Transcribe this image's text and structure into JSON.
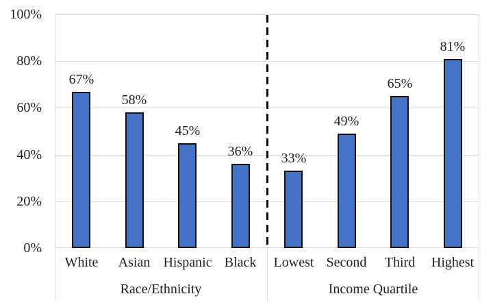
{
  "chart_data": {
    "type": "bar",
    "title": "",
    "xlabel": "",
    "ylabel": "",
    "ylim": [
      0,
      100
    ],
    "grid": "on",
    "legend": "none",
    "yticks": [
      {
        "value": 0,
        "label": "0%"
      },
      {
        "value": 20,
        "label": "20%"
      },
      {
        "value": 40,
        "label": "40%"
      },
      {
        "value": 60,
        "label": "60%"
      },
      {
        "value": 80,
        "label": "80%"
      },
      {
        "value": 100,
        "label": "100%"
      }
    ],
    "groups": [
      {
        "label": "Race/Ethnicity",
        "categories": [
          "White",
          "Asian",
          "Hispanic",
          "Black"
        ],
        "values": [
          67,
          58,
          45,
          36
        ],
        "data_labels": [
          "67%",
          "58%",
          "45%",
          "36%"
        ]
      },
      {
        "label": "Income Quartile",
        "categories": [
          "Lowest",
          "Second",
          "Third",
          "Highest"
        ],
        "values": [
          33,
          49,
          65,
          81
        ],
        "data_labels": [
          "33%",
          "49%",
          "65%",
          "81%"
        ]
      }
    ],
    "group_separator": {
      "style": "dashed",
      "color": "#000000",
      "position": "between Black and Lowest"
    },
    "colors": {
      "bar_fill": "#4472C4",
      "bar_border": "#111111",
      "gridline": "#D9D9D9",
      "axis_line": "#D9D9D9",
      "text": "#1F1F1F",
      "background": "#FFFFFF"
    }
  }
}
